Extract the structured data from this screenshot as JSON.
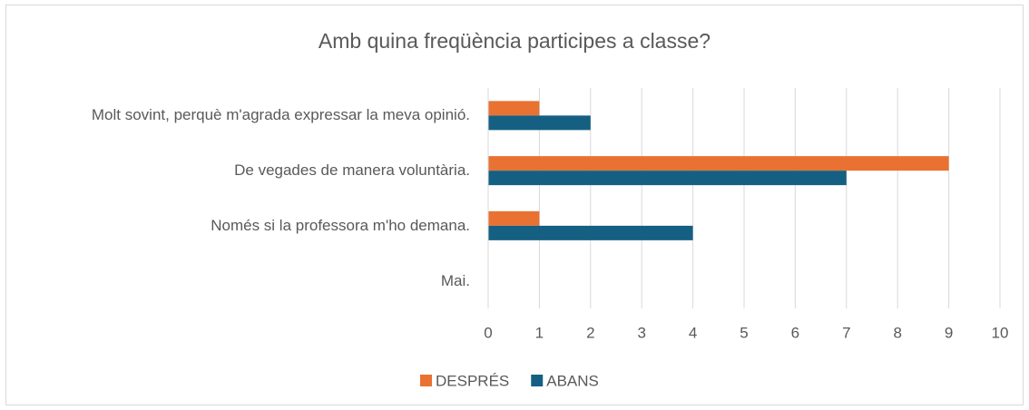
{
  "chart_data": {
    "type": "hbar",
    "title": "Amb quina freqüència participes a classe?",
    "categories": [
      "Molt sovint, perquè m'agrada expressar la meva opinió.",
      "De vegades de manera voluntària.",
      "Només si la professora m'ho demana.",
      "Mai."
    ],
    "series": [
      {
        "name": "DESPRÉS",
        "color": "#e97132",
        "values": [
          1,
          9,
          1,
          0
        ]
      },
      {
        "name": "ABANS",
        "color": "#156082",
        "values": [
          2,
          7,
          4,
          0
        ]
      }
    ],
    "xlim": [
      0,
      10
    ],
    "xticks": [
      0,
      1,
      2,
      3,
      4,
      5,
      6,
      7,
      8,
      9,
      10
    ],
    "grid": true,
    "legend": "bottom"
  }
}
